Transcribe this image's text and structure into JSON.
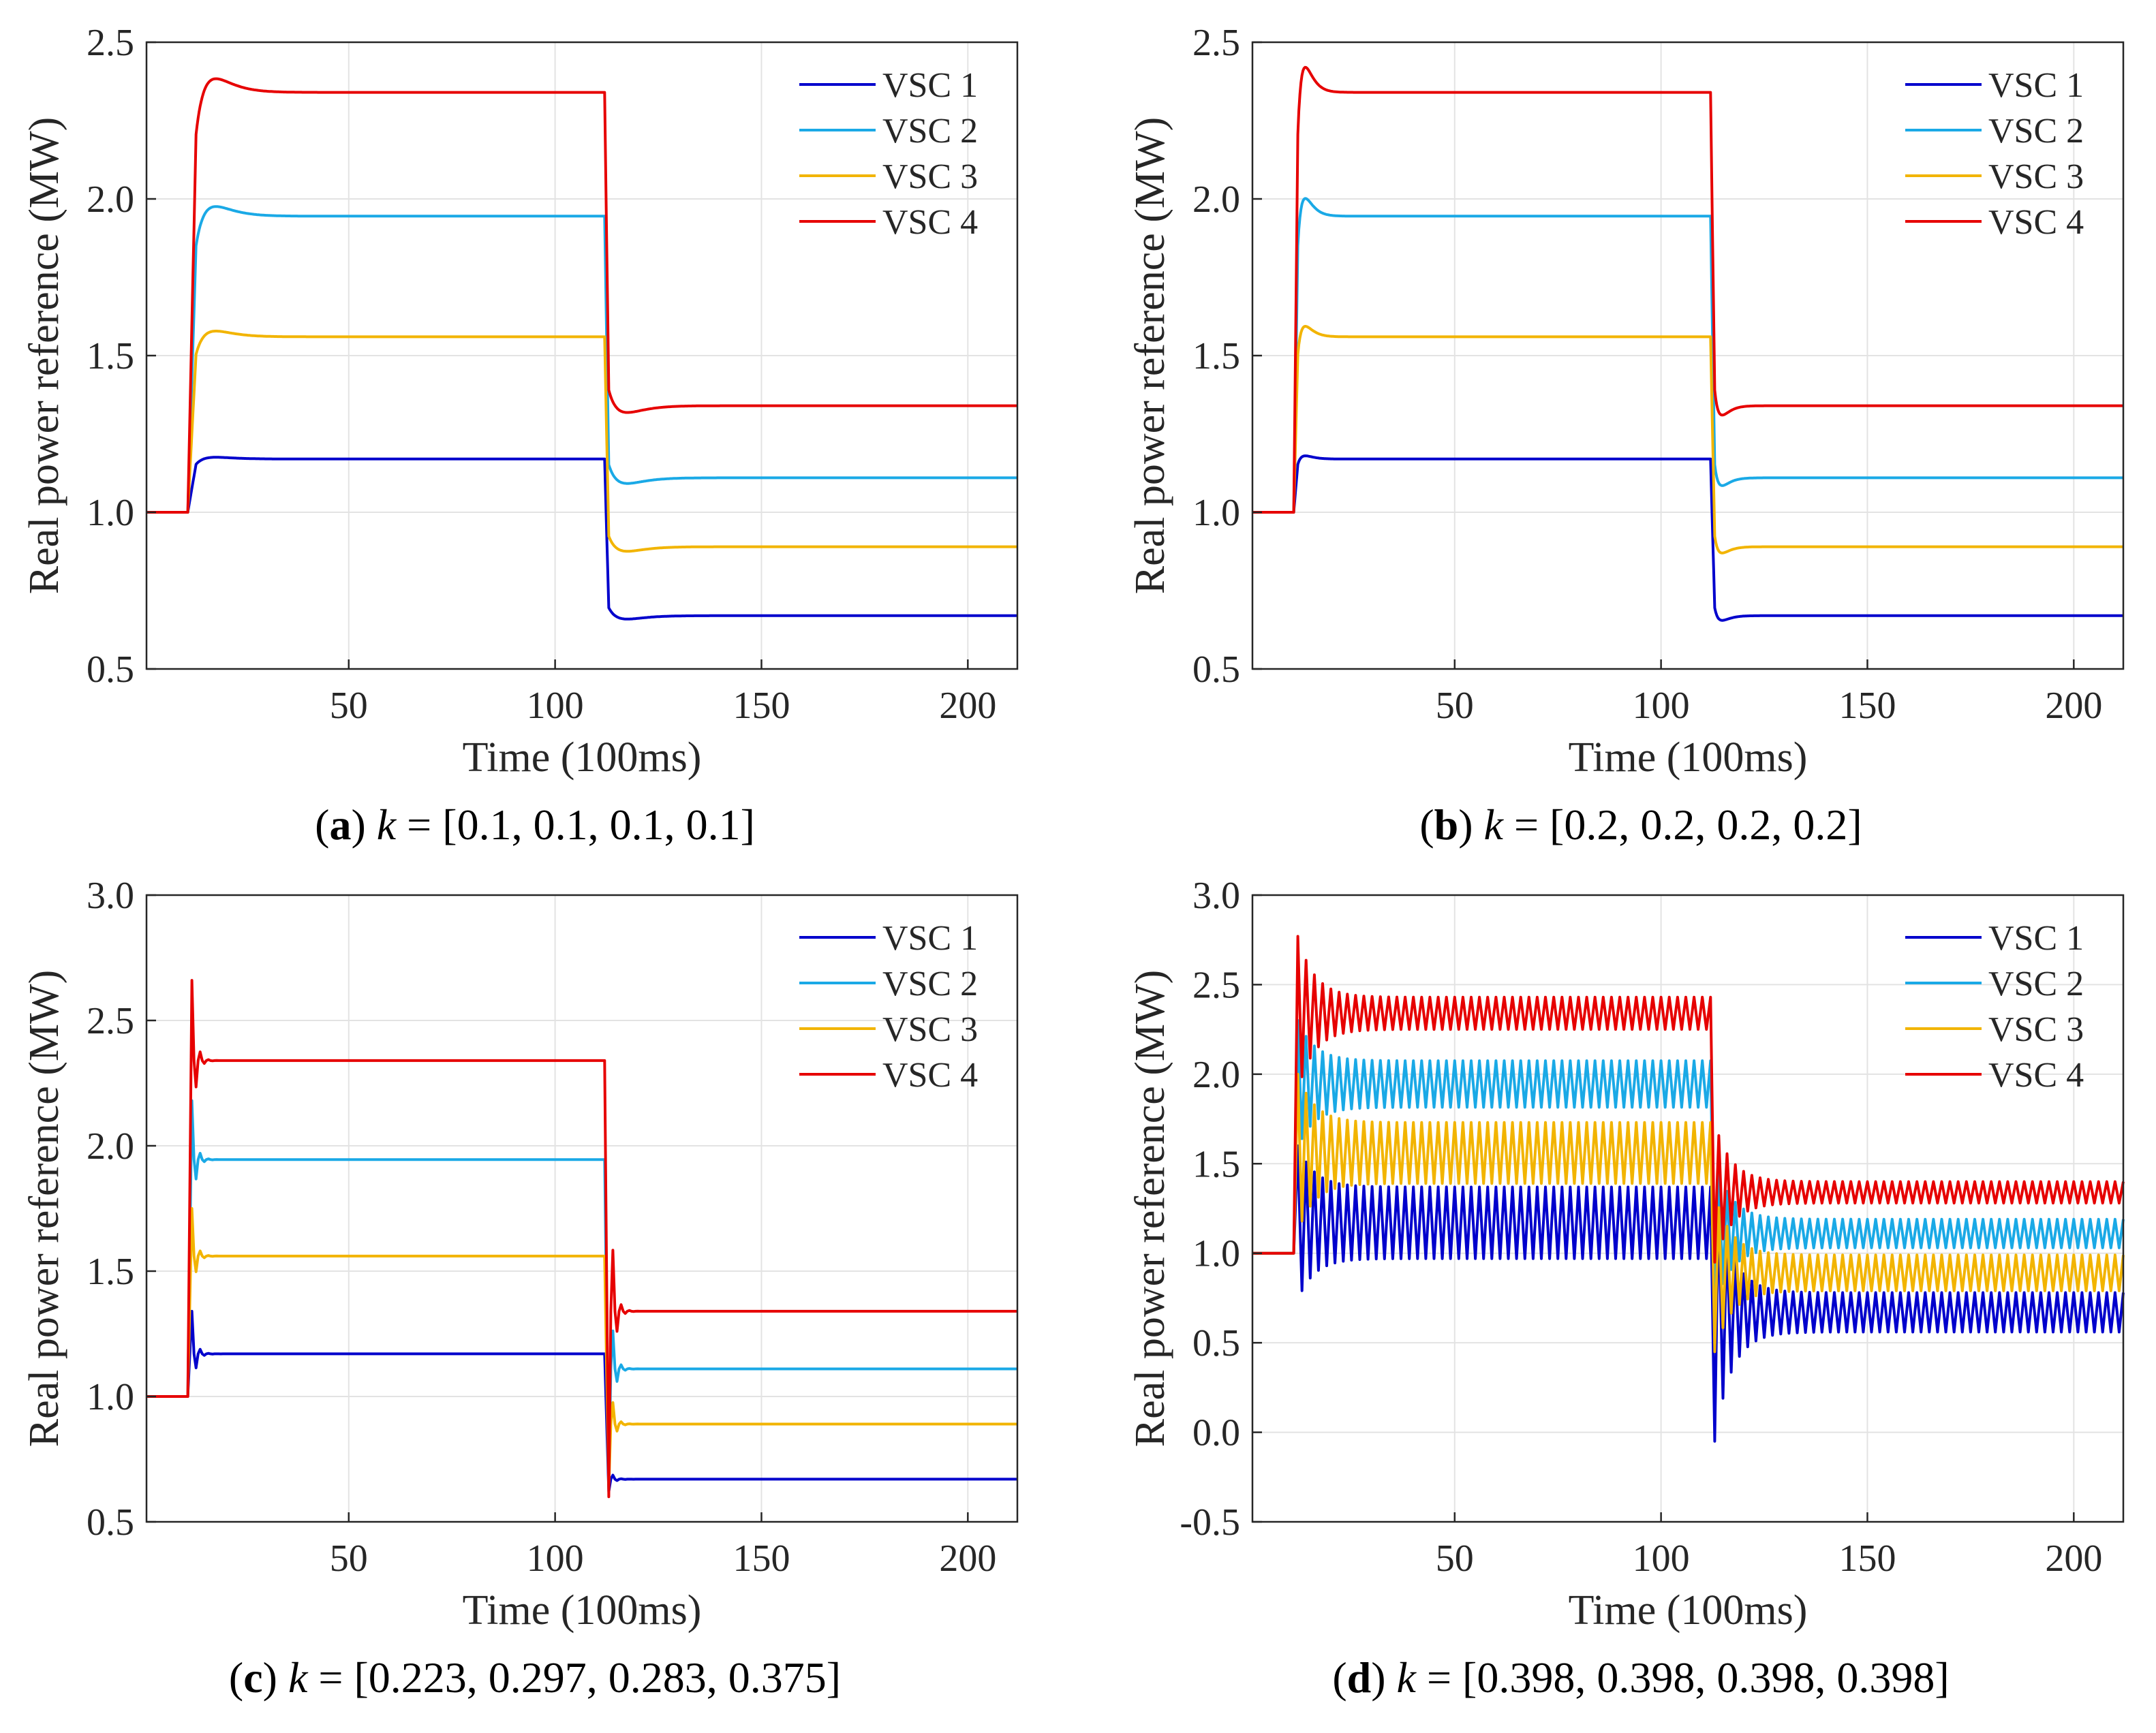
{
  "series_colors": {
    "VSC 1": "#0000cc",
    "VSC 2": "#1aa9e6",
    "VSC 3": "#f2b400",
    "VSC 4": "#e60000"
  },
  "chart_data": [
    {
      "id": "a",
      "type": "line",
      "caption": {
        "letter": "(a)",
        "k_symbol": "k",
        "rest": " = [0.1, 0.1, 0.1, 0.1]"
      },
      "xlabel": "Time (100ms)",
      "ylabel": "Real power reference (MW)",
      "xlim": [
        1,
        212
      ],
      "ylim": [
        0.5,
        2.5
      ],
      "xticks": [
        50,
        100,
        150,
        200
      ],
      "yticks": [
        "0.5",
        "1.0",
        "1.5",
        "2.0",
        "2.5"
      ],
      "grid": true,
      "legend_position": "top-right",
      "dynamics": {
        "tau1": 3.0,
        "overshoot": 0.2,
        "tau2": 3.0,
        "undershoot": 0.12,
        "rise_start": 11,
        "rise_end": 13,
        "switch": 112,
        "switch_end": 113,
        "oscillation": 0
      },
      "series": [
        {
          "name": "VSC 1",
          "initial": 1.0,
          "level1": 1.17,
          "level2": 0.67
        },
        {
          "name": "VSC 2",
          "initial": 1.0,
          "level1": 1.945,
          "level2": 1.11
        },
        {
          "name": "VSC 3",
          "initial": 1.0,
          "level1": 1.56,
          "level2": 0.89
        },
        {
          "name": "VSC 4",
          "initial": 1.0,
          "level1": 2.34,
          "level2": 1.34
        }
      ]
    },
    {
      "id": "b",
      "type": "line",
      "caption": {
        "letter": "(b)",
        "k_symbol": "k",
        "rest": " = [0.2, 0.2, 0.2, 0.2]"
      },
      "xlabel": "Time (100ms)",
      "ylabel": "Real power reference (MW)",
      "xlim": [
        1,
        212
      ],
      "ylim": [
        0.5,
        2.5
      ],
      "xticks": [
        50,
        100,
        150,
        200
      ],
      "yticks": [
        "0.5",
        "1.0",
        "1.5",
        "2.0",
        "2.5"
      ],
      "grid": true,
      "legend_position": "top-right",
      "dynamics": {
        "tau1": 1.3,
        "overshoot": 0.3,
        "tau2": 1.3,
        "undershoot": 0.15,
        "rise_start": 11,
        "rise_end": 12,
        "switch": 112,
        "switch_end": 113,
        "oscillation": 0
      },
      "series": [
        {
          "name": "VSC 1",
          "initial": 1.0,
          "level1": 1.17,
          "level2": 0.67
        },
        {
          "name": "VSC 2",
          "initial": 1.0,
          "level1": 1.945,
          "level2": 1.11
        },
        {
          "name": "VSC 3",
          "initial": 1.0,
          "level1": 1.56,
          "level2": 0.89
        },
        {
          "name": "VSC 4",
          "initial": 1.0,
          "level1": 2.34,
          "level2": 1.34
        }
      ]
    },
    {
      "id": "c",
      "type": "line",
      "caption": {
        "letter": "(c)",
        "k_symbol": "k",
        "rest": " = [0.223, 0.297, 0.283, 0.375]"
      },
      "xlabel": "Time (100ms)",
      "ylabel": "Real power reference (MW)",
      "xlim": [
        1,
        212
      ],
      "ylim": [
        0.5,
        3.0
      ],
      "xticks": [
        50,
        100,
        150,
        200
      ],
      "yticks": [
        "0.5",
        "1.0",
        "1.5",
        "2.0",
        "2.5",
        "3.0"
      ],
      "grid": true,
      "legend_position": "top-right",
      "dynamics": {
        "tau1": 1.2,
        "overshoot": 0.9,
        "tau2": 1.2,
        "undershoot": 0.9,
        "rise_start": 11,
        "rise_end": 12,
        "switch": 112,
        "switch_end": 113,
        "oscillation": 1
      },
      "series": [
        {
          "name": "VSC 1",
          "initial": 1.0,
          "level1": 1.17,
          "level2": 0.67,
          "peak1": 1.34,
          "trough2": 0.62
        },
        {
          "name": "VSC 2",
          "initial": 1.0,
          "level1": 1.945,
          "level2": 1.11,
          "peak1": 2.18,
          "trough2": 0.65
        },
        {
          "name": "VSC 3",
          "initial": 1.0,
          "level1": 1.56,
          "level2": 0.89,
          "peak1": 1.75,
          "trough2": 0.63
        },
        {
          "name": "VSC 4",
          "initial": 1.0,
          "level1": 2.34,
          "level2": 1.34,
          "peak1": 2.66,
          "trough2": 0.6
        }
      ]
    },
    {
      "id": "d",
      "type": "line",
      "caption": {
        "letter": "(d)",
        "k_symbol": "k",
        "rest": " = [0.398, 0.398, 0.398, 0.398]"
      },
      "xlabel": "Time (100ms)",
      "ylabel": "Real power reference (MW)",
      "xlim": [
        1,
        212
      ],
      "ylim": [
        -0.5,
        3.0
      ],
      "xticks": [
        50,
        100,
        150,
        200
      ],
      "yticks": [
        "-0.5",
        "0.0",
        "0.5",
        "1.0",
        "1.5",
        "2.0",
        "2.5",
        "3.0"
      ],
      "grid": true,
      "legend_position": "top-right",
      "dynamics": {
        "tau1": 1.0,
        "overshoot": 0,
        "tau2": 1.0,
        "undershoot": 0,
        "rise_start": 11,
        "rise_end": 12,
        "switch": 112,
        "switch_end": 113,
        "oscillation": 2
      },
      "series": [
        {
          "name": "VSC 1",
          "initial": 1.0,
          "level1": 1.17,
          "level2": 0.67,
          "amp1": 0.2,
          "amp2": 0.11,
          "peak1": 1.6,
          "trough2": -0.05
        },
        {
          "name": "VSC 2",
          "initial": 1.0,
          "level1": 1.945,
          "level2": 1.11,
          "amp1": 0.13,
          "amp2": 0.08,
          "peak1": 2.3,
          "trough2": 0.7
        },
        {
          "name": "VSC 3",
          "initial": 1.0,
          "level1": 1.56,
          "level2": 0.89,
          "amp1": 0.17,
          "amp2": 0.1,
          "peak1": 2.0,
          "trough2": 0.45
        },
        {
          "name": "VSC 4",
          "initial": 1.0,
          "level1": 2.34,
          "level2": 1.34,
          "amp1": 0.09,
          "amp2": 0.06,
          "peak1": 2.77,
          "trough2": 0.95
        }
      ]
    }
  ]
}
